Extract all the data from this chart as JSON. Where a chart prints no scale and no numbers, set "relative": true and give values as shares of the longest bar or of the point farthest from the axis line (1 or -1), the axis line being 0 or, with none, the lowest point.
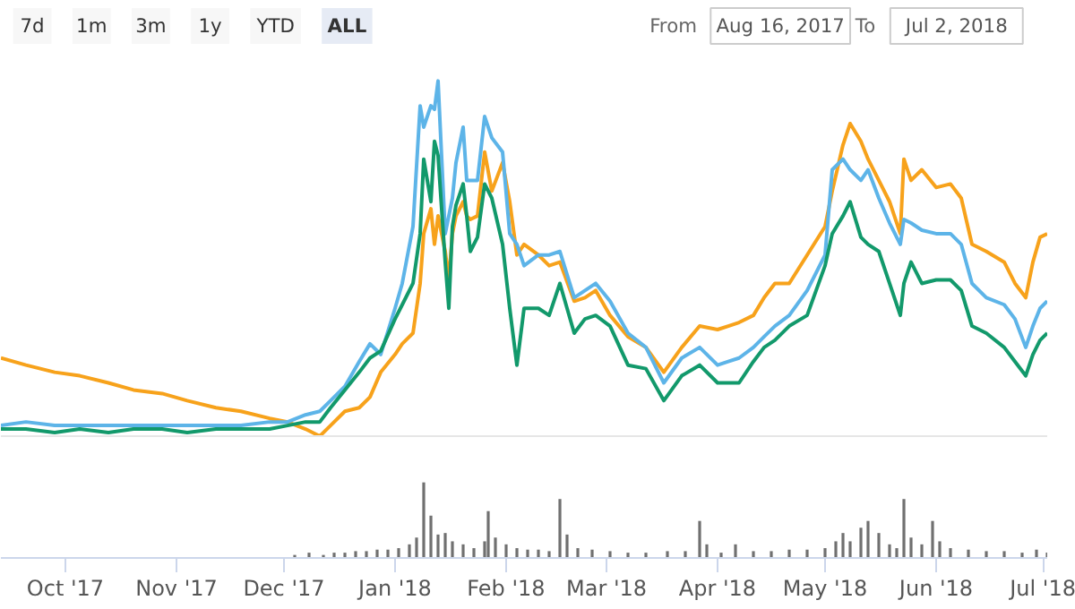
{
  "chart_data": [
    {
      "type": "line",
      "relative": true,
      "tick_labels": false,
      "annotations": [
        "7d",
        "1m",
        "3m",
        "1y",
        "YTD",
        "ALL",
        "From",
        "Aug 16, 2017",
        "To",
        "Jul 2, 2018"
      ],
      "xlim": [
        "2017-09-13",
        "2018-07-02"
      ],
      "x": [
        "2017-09-13",
        "2017-09-20",
        "2017-09-28",
        "2017-10-05",
        "2017-10-13",
        "2017-10-20",
        "2017-10-28",
        "2017-11-04",
        "2017-11-12",
        "2017-11-19",
        "2017-11-27",
        "2017-12-02",
        "2017-12-07",
        "2017-12-11",
        "2017-12-14",
        "2017-12-18",
        "2017-12-22",
        "2017-12-25",
        "2017-12-28",
        "2018-01-01",
        "2018-01-03",
        "2018-01-06",
        "2018-01-08",
        "2018-01-09",
        "2018-01-11",
        "2018-01-12",
        "2018-01-13",
        "2018-01-15",
        "2018-01-16",
        "2018-01-17",
        "2018-01-18",
        "2018-01-20",
        "2018-01-21",
        "2018-01-22",
        "2018-01-24",
        "2018-01-26",
        "2018-01-28",
        "2018-01-31",
        "2018-02-02",
        "2018-02-04",
        "2018-02-06",
        "2018-02-10",
        "2018-02-13",
        "2018-02-16",
        "2018-02-20",
        "2018-02-23",
        "2018-02-26",
        "2018-03-02",
        "2018-03-07",
        "2018-03-12",
        "2018-03-17",
        "2018-03-22",
        "2018-03-27",
        "2018-04-01",
        "2018-04-04",
        "2018-04-07",
        "2018-04-11",
        "2018-04-14",
        "2018-04-17",
        "2018-04-21",
        "2018-04-26",
        "2018-05-01",
        "2018-05-03",
        "2018-05-06",
        "2018-05-08",
        "2018-05-11",
        "2018-05-13",
        "2018-05-16",
        "2018-05-19",
        "2018-05-22",
        "2018-05-23",
        "2018-05-25",
        "2018-05-28",
        "2018-06-01",
        "2018-06-05",
        "2018-06-08",
        "2018-06-11",
        "2018-06-15",
        "2018-06-20",
        "2018-06-23",
        "2018-06-26",
        "2018-06-28",
        "2018-06-30",
        "2018-07-02"
      ],
      "series": [
        {
          "color": "#f7a21b",
          "values": [
            0.22,
            0.2,
            0.18,
            0.17,
            0.15,
            0.13,
            0.12,
            0.1,
            0.08,
            0.07,
            0.05,
            0.04,
            0.02,
            0,
            0.03,
            0.07,
            0.08,
            0.11,
            0.18,
            0.23,
            0.26,
            0.29,
            0.43,
            0.57,
            0.64,
            0.54,
            0.62,
            0.52,
            0.44,
            0.57,
            0.62,
            0.66,
            0.62,
            0.61,
            0.62,
            0.8,
            0.69,
            0.77,
            0.66,
            0.51,
            0.54,
            0.51,
            0.48,
            0.49,
            0.38,
            0.39,
            0.41,
            0.34,
            0.28,
            0.25,
            0.18,
            0.25,
            0.31,
            0.3,
            0.31,
            0.32,
            0.34,
            0.39,
            0.43,
            0.43,
            0.51,
            0.59,
            0.69,
            0.82,
            0.88,
            0.83,
            0.78,
            0.72,
            0.66,
            0.57,
            0.78,
            0.72,
            0.75,
            0.7,
            0.71,
            0.67,
            0.54,
            0.52,
            0.49,
            0.43,
            0.39,
            0.49,
            0.56,
            0.57
          ]
        },
        {
          "color": "#5db4e8",
          "values": [
            0.03,
            0.04,
            0.03,
            0.03,
            0.03,
            0.03,
            0.03,
            0.03,
            0.03,
            0.03,
            0.04,
            0.04,
            0.06,
            0.07,
            0.1,
            0.14,
            0.21,
            0.26,
            0.23,
            0.36,
            0.43,
            0.59,
            0.93,
            0.87,
            0.93,
            0.92,
            1.0,
            0.57,
            0.62,
            0.67,
            0.77,
            0.87,
            0.72,
            0.72,
            0.72,
            0.9,
            0.84,
            0.8,
            0.57,
            0.54,
            0.48,
            0.51,
            0.51,
            0.52,
            0.39,
            0.41,
            0.43,
            0.38,
            0.29,
            0.25,
            0.15,
            0.22,
            0.25,
            0.2,
            0.21,
            0.22,
            0.25,
            0.28,
            0.31,
            0.34,
            0.41,
            0.51,
            0.75,
            0.78,
            0.75,
            0.72,
            0.75,
            0.67,
            0.6,
            0.54,
            0.61,
            0.6,
            0.58,
            0.57,
            0.57,
            0.54,
            0.43,
            0.39,
            0.37,
            0.33,
            0.25,
            0.31,
            0.36,
            0.38
          ]
        },
        {
          "color": "#12996b",
          "values": [
            0.02,
            0.02,
            0.01,
            0.02,
            0.01,
            0.02,
            0.02,
            0.01,
            0.02,
            0.02,
            0.02,
            0.03,
            0.04,
            0.04,
            0.08,
            0.13,
            0.18,
            0.22,
            0.24,
            0.33,
            0.37,
            0.43,
            0.57,
            0.78,
            0.66,
            0.83,
            0.79,
            0.49,
            0.36,
            0.59,
            0.65,
            0.71,
            0.62,
            0.52,
            0.56,
            0.71,
            0.67,
            0.54,
            0.36,
            0.2,
            0.36,
            0.36,
            0.34,
            0.43,
            0.29,
            0.33,
            0.34,
            0.31,
            0.2,
            0.19,
            0.1,
            0.17,
            0.2,
            0.15,
            0.15,
            0.15,
            0.21,
            0.25,
            0.27,
            0.31,
            0.34,
            0.48,
            0.57,
            0.62,
            0.66,
            0.56,
            0.54,
            0.52,
            0.43,
            0.34,
            0.43,
            0.49,
            0.43,
            0.44,
            0.44,
            0.41,
            0.31,
            0.29,
            0.25,
            0.21,
            0.17,
            0.23,
            0.27,
            0.29
          ]
        }
      ]
    },
    {
      "type": "bar",
      "relative": true,
      "tick_labels": "x",
      "color": "#707070",
      "xlim": [
        "2017-09-13",
        "2018-07-02"
      ],
      "xticks": [
        {
          "value": "2017-10-01",
          "label": "Oct '17"
        },
        {
          "value": "2017-11-01",
          "label": "Nov '17"
        },
        {
          "value": "2017-12-01",
          "label": "Dec '17"
        },
        {
          "value": "2018-01-01",
          "label": "Jan '18"
        },
        {
          "value": "2018-02-01",
          "label": "Feb '18"
        },
        {
          "value": "2018-03-01",
          "label": "Mar '18"
        },
        {
          "value": "2018-04-01",
          "label": "Apr '18"
        },
        {
          "value": "2018-05-01",
          "label": "May '18"
        },
        {
          "value": "2018-06-01",
          "label": "Jun '18"
        },
        {
          "value": "2018-07-01",
          "label": "Jul '18"
        }
      ],
      "x": [
        "2017-12-04",
        "2017-12-08",
        "2017-12-12",
        "2017-12-15",
        "2017-12-18",
        "2017-12-21",
        "2017-12-24",
        "2017-12-27",
        "2017-12-30",
        "2018-01-02",
        "2018-01-05",
        "2018-01-07",
        "2018-01-09",
        "2018-01-11",
        "2018-01-13",
        "2018-01-15",
        "2018-01-17",
        "2018-01-20",
        "2018-01-23",
        "2018-01-26",
        "2018-01-27",
        "2018-01-29",
        "2018-02-01",
        "2018-02-04",
        "2018-02-07",
        "2018-02-10",
        "2018-02-13",
        "2018-02-16",
        "2018-02-18",
        "2018-02-21",
        "2018-02-25",
        "2018-03-02",
        "2018-03-07",
        "2018-03-12",
        "2018-03-18",
        "2018-03-23",
        "2018-03-27",
        "2018-03-29",
        "2018-04-02",
        "2018-04-06",
        "2018-04-11",
        "2018-04-16",
        "2018-04-21",
        "2018-04-26",
        "2018-05-01",
        "2018-05-04",
        "2018-05-06",
        "2018-05-08",
        "2018-05-11",
        "2018-05-13",
        "2018-05-16",
        "2018-05-19",
        "2018-05-21",
        "2018-05-23",
        "2018-05-25",
        "2018-05-28",
        "2018-05-31",
        "2018-06-02",
        "2018-06-05",
        "2018-06-10",
        "2018-06-15",
        "2018-06-20",
        "2018-06-25",
        "2018-06-29",
        "2018-07-02"
      ],
      "values": [
        0.04,
        0.07,
        0.04,
        0.07,
        0.07,
        0.09,
        0.09,
        0.11,
        0.11,
        0.13,
        0.18,
        0.27,
        1.0,
        0.56,
        0.31,
        0.33,
        0.22,
        0.18,
        0.13,
        0.22,
        0.62,
        0.27,
        0.18,
        0.13,
        0.11,
        0.11,
        0.09,
        0.78,
        0.31,
        0.13,
        0.11,
        0.09,
        0.07,
        0.07,
        0.09,
        0.09,
        0.49,
        0.18,
        0.07,
        0.18,
        0.09,
        0.09,
        0.11,
        0.11,
        0.13,
        0.22,
        0.33,
        0.22,
        0.4,
        0.49,
        0.33,
        0.18,
        0.13,
        0.78,
        0.27,
        0.18,
        0.49,
        0.22,
        0.13,
        0.11,
        0.09,
        0.09,
        0.07,
        0.11,
        0.07
      ]
    }
  ]
}
